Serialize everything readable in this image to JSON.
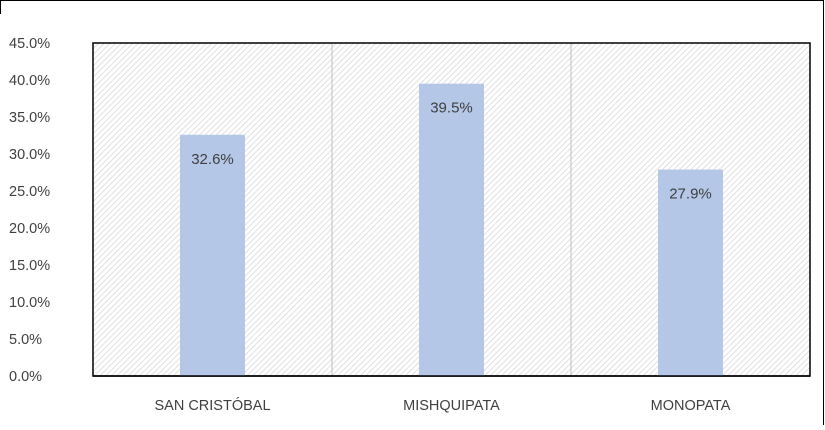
{
  "chart_data": {
    "type": "bar",
    "categories": [
      "SAN CRISTÓBAL",
      "MISHQUIPATA",
      "MONOPATA"
    ],
    "values": [
      32.6,
      39.5,
      27.9
    ],
    "data_labels": [
      "32.6%",
      "39.5%",
      "27.9%"
    ],
    "title": "",
    "xlabel": "",
    "ylabel": "",
    "ylim": [
      0,
      45
    ],
    "yticks": [
      "0.0%",
      "5.0%",
      "10.0%",
      "15.0%",
      "20.0%",
      "25.0%",
      "30.0%",
      "35.0%",
      "40.0%",
      "45.0%"
    ],
    "grid": false,
    "legend": "none",
    "bar_color": "#b4c7e7",
    "plot_background": "hatched"
  }
}
